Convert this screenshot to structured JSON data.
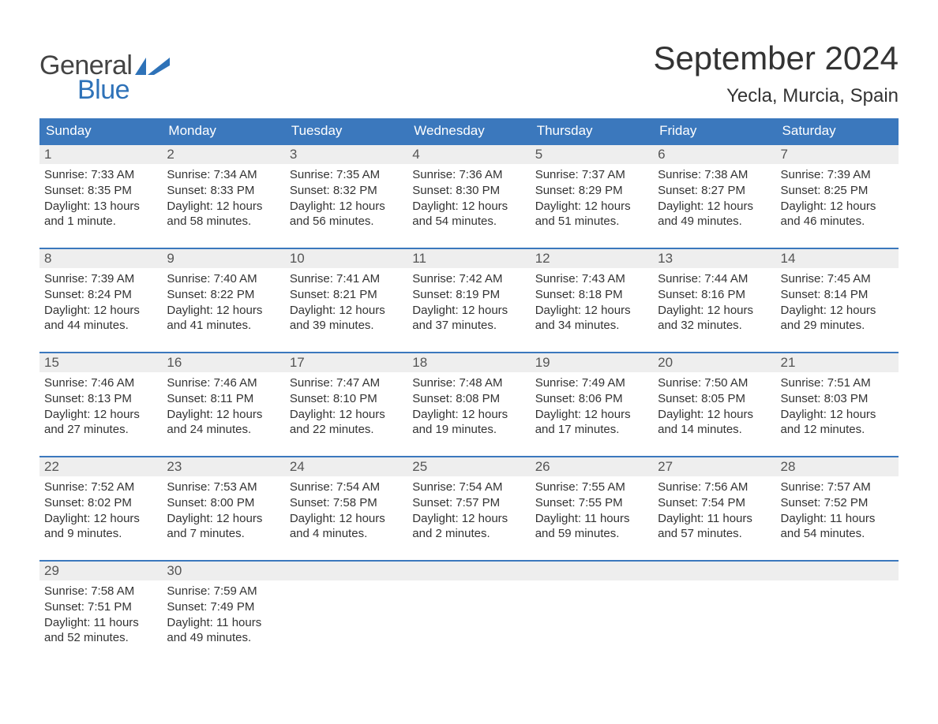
{
  "brand": {
    "word1": "General",
    "word2": "Blue",
    "word1_color": "#444444",
    "word2_color": "#2e72b8",
    "flag_color": "#2e72b8"
  },
  "title": "September 2024",
  "location": "Yecla, Murcia, Spain",
  "colors": {
    "header_bg": "#3b78bd",
    "header_text": "#ffffff",
    "week_border": "#3b78bd",
    "daynum_bg": "#eeeeee",
    "daynum_text": "#555555",
    "body_text": "#333333",
    "page_bg": "#ffffff"
  },
  "typography": {
    "title_fontsize": 42,
    "location_fontsize": 24,
    "dow_fontsize": 17,
    "daynum_fontsize": 17,
    "body_fontsize": 15
  },
  "calendar": {
    "type": "calendar-table",
    "columns": 7,
    "rows": 5,
    "days_of_week": [
      "Sunday",
      "Monday",
      "Tuesday",
      "Wednesday",
      "Thursday",
      "Friday",
      "Saturday"
    ],
    "weeks": [
      [
        {
          "num": "1",
          "sunrise": "Sunrise: 7:33 AM",
          "sunset": "Sunset: 8:35 PM",
          "day1": "Daylight: 13 hours",
          "day2": "and 1 minute."
        },
        {
          "num": "2",
          "sunrise": "Sunrise: 7:34 AM",
          "sunset": "Sunset: 8:33 PM",
          "day1": "Daylight: 12 hours",
          "day2": "and 58 minutes."
        },
        {
          "num": "3",
          "sunrise": "Sunrise: 7:35 AM",
          "sunset": "Sunset: 8:32 PM",
          "day1": "Daylight: 12 hours",
          "day2": "and 56 minutes."
        },
        {
          "num": "4",
          "sunrise": "Sunrise: 7:36 AM",
          "sunset": "Sunset: 8:30 PM",
          "day1": "Daylight: 12 hours",
          "day2": "and 54 minutes."
        },
        {
          "num": "5",
          "sunrise": "Sunrise: 7:37 AM",
          "sunset": "Sunset: 8:29 PM",
          "day1": "Daylight: 12 hours",
          "day2": "and 51 minutes."
        },
        {
          "num": "6",
          "sunrise": "Sunrise: 7:38 AM",
          "sunset": "Sunset: 8:27 PM",
          "day1": "Daylight: 12 hours",
          "day2": "and 49 minutes."
        },
        {
          "num": "7",
          "sunrise": "Sunrise: 7:39 AM",
          "sunset": "Sunset: 8:25 PM",
          "day1": "Daylight: 12 hours",
          "day2": "and 46 minutes."
        }
      ],
      [
        {
          "num": "8",
          "sunrise": "Sunrise: 7:39 AM",
          "sunset": "Sunset: 8:24 PM",
          "day1": "Daylight: 12 hours",
          "day2": "and 44 minutes."
        },
        {
          "num": "9",
          "sunrise": "Sunrise: 7:40 AM",
          "sunset": "Sunset: 8:22 PM",
          "day1": "Daylight: 12 hours",
          "day2": "and 41 minutes."
        },
        {
          "num": "10",
          "sunrise": "Sunrise: 7:41 AM",
          "sunset": "Sunset: 8:21 PM",
          "day1": "Daylight: 12 hours",
          "day2": "and 39 minutes."
        },
        {
          "num": "11",
          "sunrise": "Sunrise: 7:42 AM",
          "sunset": "Sunset: 8:19 PM",
          "day1": "Daylight: 12 hours",
          "day2": "and 37 minutes."
        },
        {
          "num": "12",
          "sunrise": "Sunrise: 7:43 AM",
          "sunset": "Sunset: 8:18 PM",
          "day1": "Daylight: 12 hours",
          "day2": "and 34 minutes."
        },
        {
          "num": "13",
          "sunrise": "Sunrise: 7:44 AM",
          "sunset": "Sunset: 8:16 PM",
          "day1": "Daylight: 12 hours",
          "day2": "and 32 minutes."
        },
        {
          "num": "14",
          "sunrise": "Sunrise: 7:45 AM",
          "sunset": "Sunset: 8:14 PM",
          "day1": "Daylight: 12 hours",
          "day2": "and 29 minutes."
        }
      ],
      [
        {
          "num": "15",
          "sunrise": "Sunrise: 7:46 AM",
          "sunset": "Sunset: 8:13 PM",
          "day1": "Daylight: 12 hours",
          "day2": "and 27 minutes."
        },
        {
          "num": "16",
          "sunrise": "Sunrise: 7:46 AM",
          "sunset": "Sunset: 8:11 PM",
          "day1": "Daylight: 12 hours",
          "day2": "and 24 minutes."
        },
        {
          "num": "17",
          "sunrise": "Sunrise: 7:47 AM",
          "sunset": "Sunset: 8:10 PM",
          "day1": "Daylight: 12 hours",
          "day2": "and 22 minutes."
        },
        {
          "num": "18",
          "sunrise": "Sunrise: 7:48 AM",
          "sunset": "Sunset: 8:08 PM",
          "day1": "Daylight: 12 hours",
          "day2": "and 19 minutes."
        },
        {
          "num": "19",
          "sunrise": "Sunrise: 7:49 AM",
          "sunset": "Sunset: 8:06 PM",
          "day1": "Daylight: 12 hours",
          "day2": "and 17 minutes."
        },
        {
          "num": "20",
          "sunrise": "Sunrise: 7:50 AM",
          "sunset": "Sunset: 8:05 PM",
          "day1": "Daylight: 12 hours",
          "day2": "and 14 minutes."
        },
        {
          "num": "21",
          "sunrise": "Sunrise: 7:51 AM",
          "sunset": "Sunset: 8:03 PM",
          "day1": "Daylight: 12 hours",
          "day2": "and 12 minutes."
        }
      ],
      [
        {
          "num": "22",
          "sunrise": "Sunrise: 7:52 AM",
          "sunset": "Sunset: 8:02 PM",
          "day1": "Daylight: 12 hours",
          "day2": "and 9 minutes."
        },
        {
          "num": "23",
          "sunrise": "Sunrise: 7:53 AM",
          "sunset": "Sunset: 8:00 PM",
          "day1": "Daylight: 12 hours",
          "day2": "and 7 minutes."
        },
        {
          "num": "24",
          "sunrise": "Sunrise: 7:54 AM",
          "sunset": "Sunset: 7:58 PM",
          "day1": "Daylight: 12 hours",
          "day2": "and 4 minutes."
        },
        {
          "num": "25",
          "sunrise": "Sunrise: 7:54 AM",
          "sunset": "Sunset: 7:57 PM",
          "day1": "Daylight: 12 hours",
          "day2": "and 2 minutes."
        },
        {
          "num": "26",
          "sunrise": "Sunrise: 7:55 AM",
          "sunset": "Sunset: 7:55 PM",
          "day1": "Daylight: 11 hours",
          "day2": "and 59 minutes."
        },
        {
          "num": "27",
          "sunrise": "Sunrise: 7:56 AM",
          "sunset": "Sunset: 7:54 PM",
          "day1": "Daylight: 11 hours",
          "day2": "and 57 minutes."
        },
        {
          "num": "28",
          "sunrise": "Sunrise: 7:57 AM",
          "sunset": "Sunset: 7:52 PM",
          "day1": "Daylight: 11 hours",
          "day2": "and 54 minutes."
        }
      ],
      [
        {
          "num": "29",
          "sunrise": "Sunrise: 7:58 AM",
          "sunset": "Sunset: 7:51 PM",
          "day1": "Daylight: 11 hours",
          "day2": "and 52 minutes."
        },
        {
          "num": "30",
          "sunrise": "Sunrise: 7:59 AM",
          "sunset": "Sunset: 7:49 PM",
          "day1": "Daylight: 11 hours",
          "day2": "and 49 minutes."
        },
        {
          "empty": true
        },
        {
          "empty": true
        },
        {
          "empty": true
        },
        {
          "empty": true
        },
        {
          "empty": true
        }
      ]
    ]
  }
}
